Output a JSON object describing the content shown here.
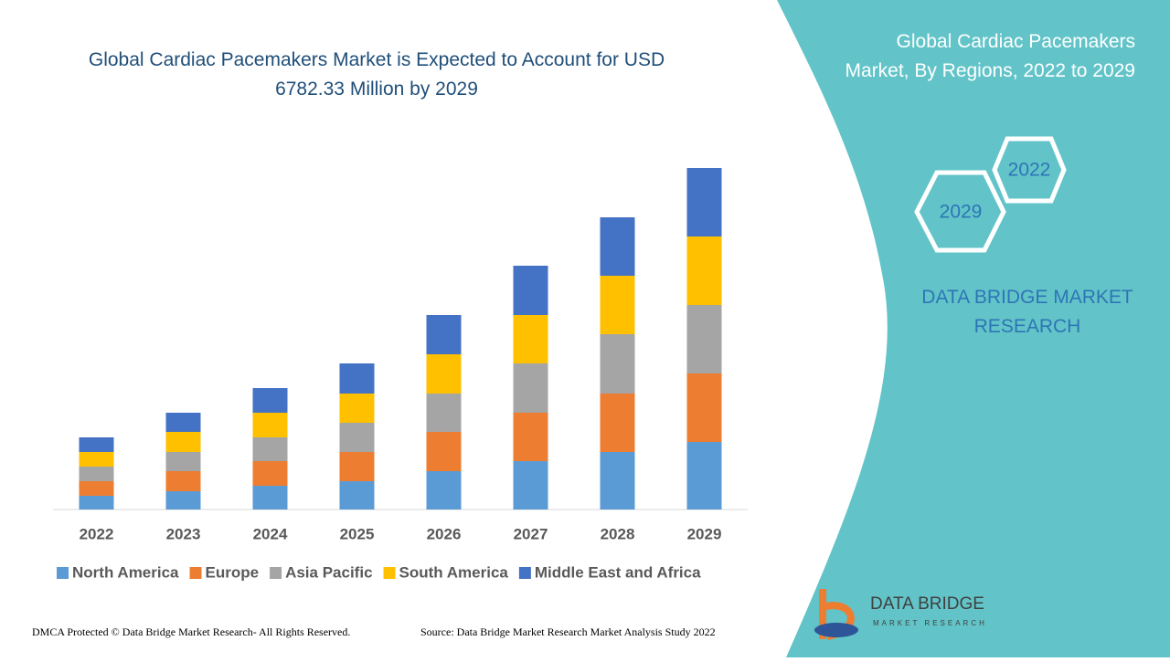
{
  "chart_data": {
    "type": "stacked-bar",
    "title": "Global Cardiac Pacemakers Market is Expected to Account for USD 6782.33 Million by 2029",
    "categories": [
      "2022",
      "2023",
      "2024",
      "2025",
      "2026",
      "2027",
      "2028",
      "2029"
    ],
    "series": [
      {
        "name": "North America",
        "color": "#5b9bd5",
        "values": [
          15,
          20,
          26,
          31,
          42,
          53,
          63,
          74
        ]
      },
      {
        "name": "Europe",
        "color": "#ed7d31",
        "values": [
          16,
          22,
          27,
          32,
          43,
          53,
          64,
          75
        ]
      },
      {
        "name": "Asia Pacific",
        "color": "#a5a5a5",
        "values": [
          16,
          21,
          26,
          32,
          42,
          54,
          65,
          75
        ]
      },
      {
        "name": "South America",
        "color": "#ffc000",
        "values": [
          16,
          22,
          27,
          32,
          43,
          53,
          64,
          75
        ]
      },
      {
        "name": "Middle East and Africa",
        "color": "#4472c4",
        "values": [
          16,
          21,
          27,
          33,
          43,
          54,
          64,
          75
        ]
      }
    ],
    "legend": "bottom"
  },
  "panel": {
    "title": "Global Cardiac Pacemakers Market, By Regions, 2022 to 2029",
    "hex_a": "2022",
    "hex_b": "2029",
    "brand": "DATA BRIDGE MARKET RESEARCH"
  },
  "logo": {
    "name": "DATA BRIDGE",
    "tagline": "MARKET RESEARCH"
  },
  "footer": {
    "left": "DMCA Protected © Data Bridge Market Research- All Rights Reserved.",
    "right": "Source: Data Bridge Market Research Market Analysis Study 2022"
  }
}
